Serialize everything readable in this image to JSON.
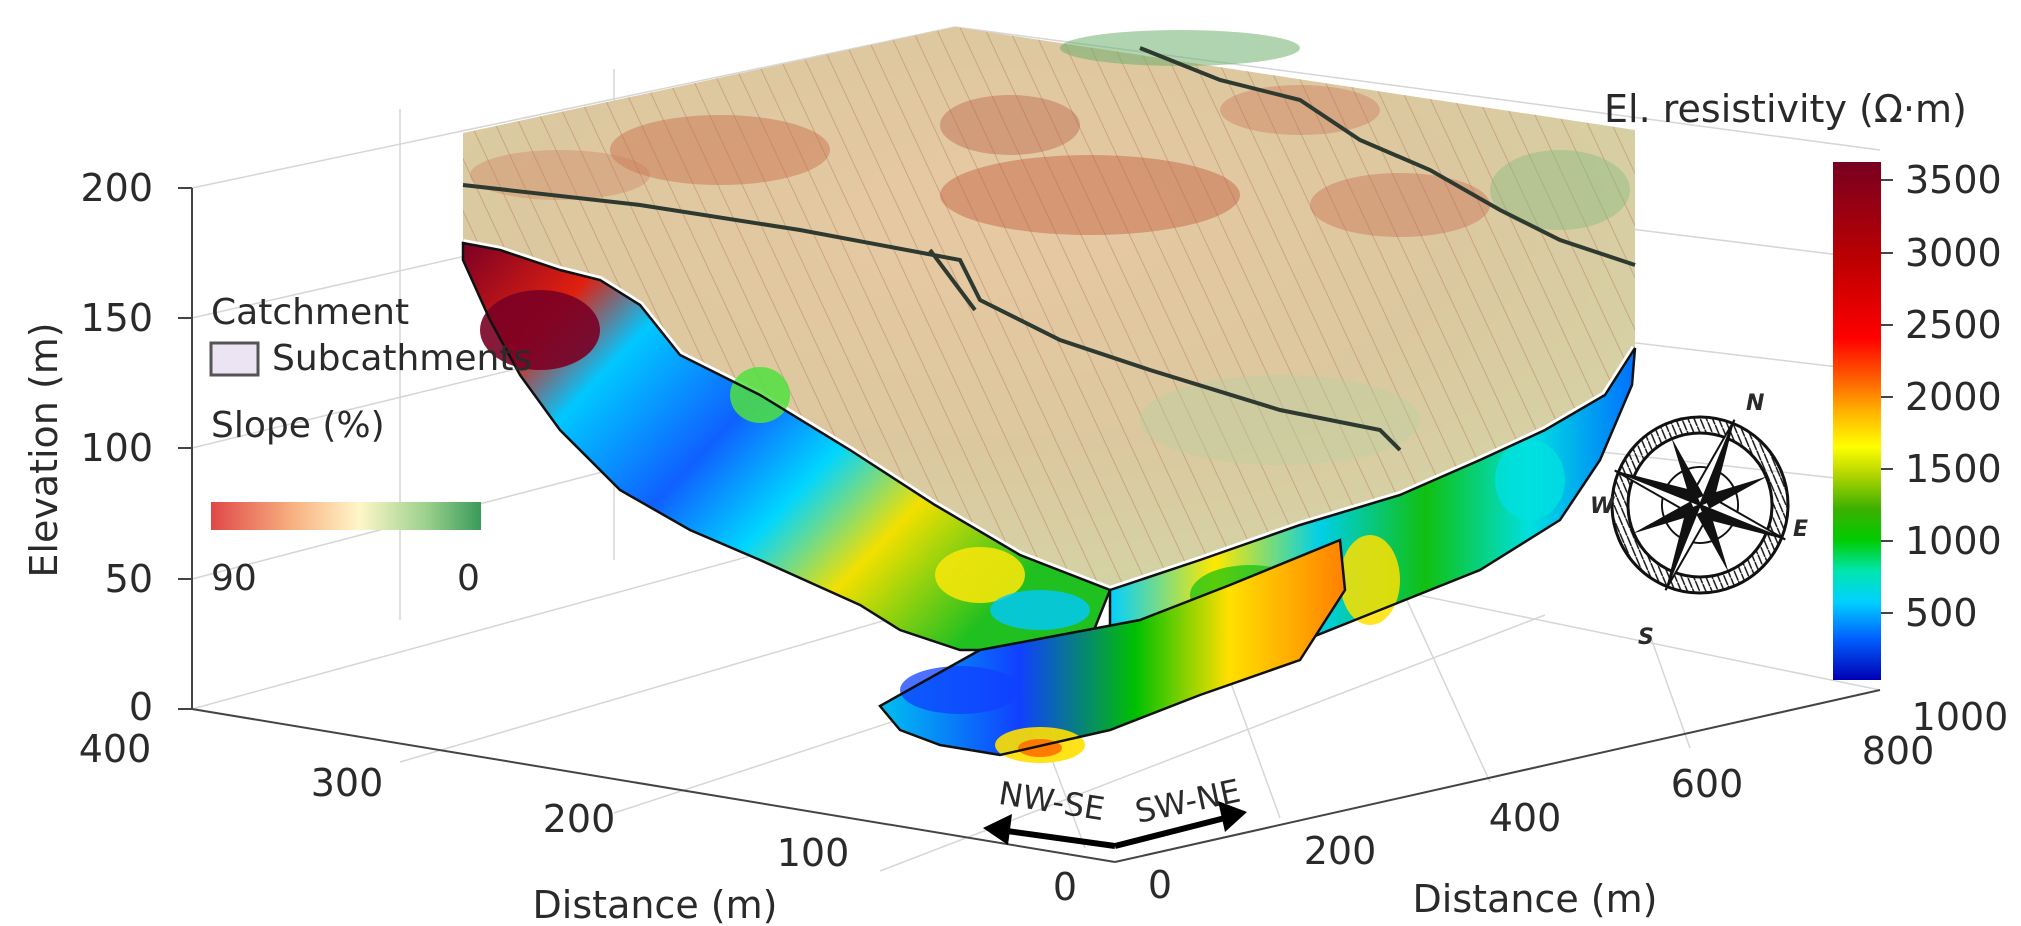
{
  "chart_data": {
    "type": "3d-surface",
    "axes": {
      "elevation": {
        "label": "Elevation (m)",
        "ticks": [
          "0",
          "50",
          "100",
          "150",
          "200"
        ],
        "range": [
          0,
          200
        ]
      },
      "distance_left": {
        "label": "Distance (m)",
        "ticks": [
          "400",
          "300",
          "200",
          "100",
          "0"
        ],
        "range": [
          0,
          400
        ]
      },
      "distance_right": {
        "label": "Distance (m)",
        "ticks": [
          "0",
          "200",
          "400",
          "600",
          "800",
          "1000"
        ],
        "range": [
          0,
          1000
        ]
      }
    },
    "grid": true,
    "colorbar": {
      "title": "El. resistivity (Ω·m)",
      "ticks": [
        "3500",
        "3000",
        "2500",
        "2000",
        "1500",
        "1000",
        "500"
      ],
      "range": [
        0,
        3600
      ],
      "colors": [
        "#0000b4",
        "#0060ff",
        "#00d0ff",
        "#00e6b0",
        "#00cc00",
        "#3cb000",
        "#b8d800",
        "#ffff00",
        "#ffb000",
        "#ff6000",
        "#ff0000",
        "#c00000",
        "#780020"
      ]
    },
    "legend": {
      "title": "Catchment",
      "item": "Subcathments",
      "slope_title": "Slope (%)",
      "slope_ticks": [
        "90",
        "0"
      ],
      "slope_colors": [
        "#e04848",
        "#f8b080",
        "#fff6c8",
        "#9ad08c",
        "#3a9a5a"
      ],
      "placement": "left"
    },
    "profiles": {
      "nw_se": "NW-SE",
      "sw_ne": "SW-NE"
    },
    "compass": {
      "n": "N",
      "e": "E",
      "s": "S",
      "w": "W"
    }
  }
}
